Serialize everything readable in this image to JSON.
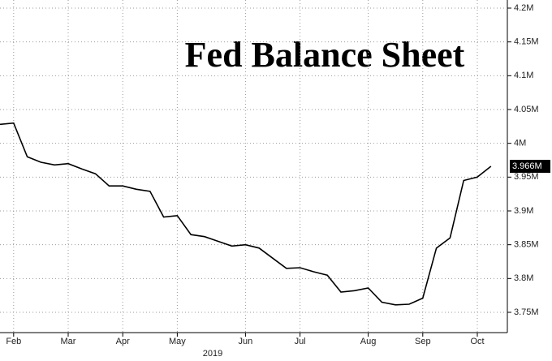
{
  "chart_data": {
    "type": "line",
    "title": "Fed Balance Sheet",
    "xlabel": "2019",
    "categories": [
      null,
      "Feb",
      null,
      null,
      null,
      "Mar",
      null,
      null,
      null,
      "Apr",
      null,
      null,
      null,
      "May",
      null,
      null,
      null,
      null,
      "Jun",
      null,
      null,
      null,
      "Jul",
      null,
      null,
      null,
      null,
      "Aug",
      null,
      null,
      null,
      "Sep",
      null,
      null,
      null,
      "Oct",
      null
    ],
    "series": [
      {
        "name": "Fed Balance Sheet",
        "color": "#000000",
        "values": [
          4.028,
          4.03,
          3.98,
          3.972,
          3.968,
          3.97,
          3.962,
          3.955,
          3.937,
          3.937,
          3.932,
          3.929,
          3.891,
          3.893,
          3.865,
          3.862,
          3.855,
          3.848,
          3.85,
          3.845,
          3.83,
          3.815,
          3.816,
          3.81,
          3.805,
          3.78,
          3.782,
          3.786,
          3.765,
          3.761,
          3.762,
          3.771,
          3.845,
          3.86,
          3.945,
          3.95,
          3.966
        ],
        "value_labels": [
          null,
          null,
          null,
          null,
          null,
          null,
          null,
          null,
          null,
          null,
          null,
          null,
          null,
          null,
          null,
          null,
          null,
          null,
          null,
          null,
          null,
          null,
          null,
          null,
          null,
          null,
          null,
          null,
          null,
          null,
          null,
          null,
          null,
          null,
          null,
          null,
          "3.966M"
        ]
      }
    ],
    "ylim": [
      3.72,
      4.212
    ],
    "yticks": [
      {
        "value": 3.75,
        "label": "3.75M"
      },
      {
        "value": 3.8,
        "label": "3.8M"
      },
      {
        "value": 3.85,
        "label": "3.85M"
      },
      {
        "value": 3.9,
        "label": "3.9M"
      },
      {
        "value": 3.95,
        "label": "3.95M"
      },
      {
        "value": 4,
        "label": "4M"
      },
      {
        "value": 4.05,
        "label": "4.05M"
      },
      {
        "value": 4.1,
        "label": "4.1M"
      },
      {
        "value": 4.15,
        "label": "4.15M"
      },
      {
        "value": 4.2,
        "label": "4.2M"
      }
    ],
    "grid": true
  }
}
